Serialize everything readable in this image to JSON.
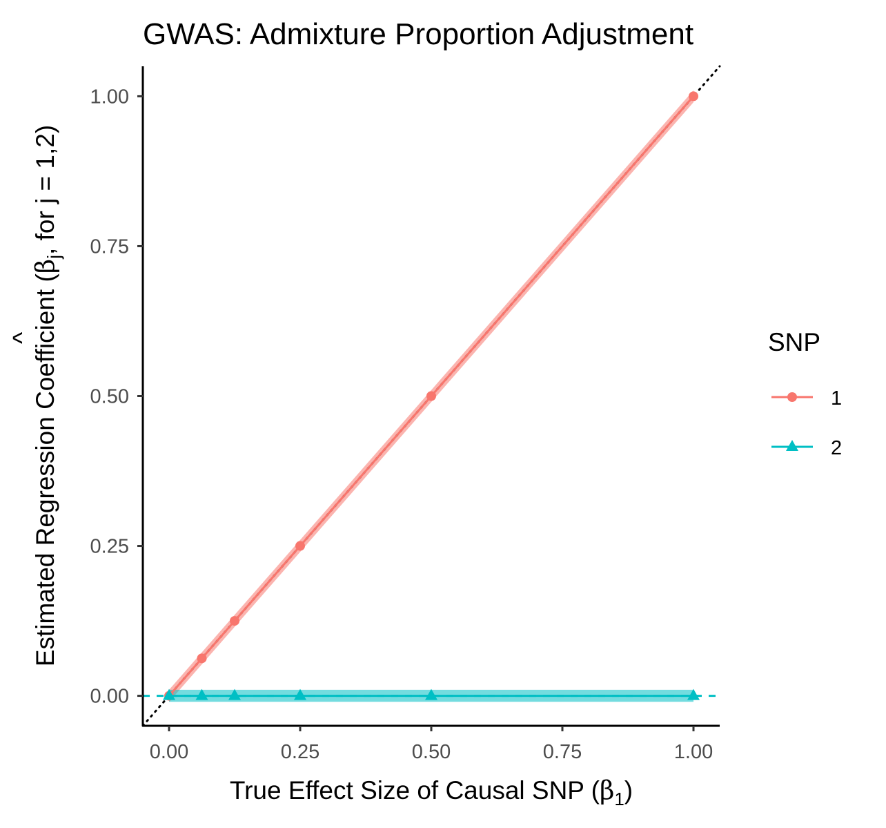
{
  "chart_data": {
    "type": "line",
    "title": "GWAS: Admixture Proportion Adjustment",
    "xlabel": {
      "text": "True Effect Size of Causal SNP (",
      "symbol": "β",
      "subscript": "1",
      "close": ")"
    },
    "ylabel": {
      "text": "Estimated Regression Coefficient (",
      "hat": "^",
      "symbol": "β",
      "subscript": "j",
      "rest": ", for j = 1,2)"
    },
    "xlim": [
      -0.05,
      1.05
    ],
    "ylim": [
      -0.05,
      1.05
    ],
    "x_ticks": [
      0,
      0.25,
      0.5,
      0.75,
      1
    ],
    "x_tick_labels": [
      "0.00",
      "0.25",
      "0.50",
      "0.75",
      "1.00"
    ],
    "y_ticks": [
      0,
      0.25,
      0.5,
      0.75,
      1
    ],
    "y_tick_labels": [
      "0.00",
      "0.25",
      "0.50",
      "0.75",
      "1.00"
    ],
    "grid": false,
    "legend": {
      "title": "SNP",
      "position": "right"
    },
    "reference_lines": [
      {
        "type": "identity",
        "slope": 1,
        "intercept": 0,
        "style": "dotted",
        "color": "#000000"
      },
      {
        "type": "horizontal",
        "y": 0,
        "style": "dashed",
        "color": "#00BFC4"
      }
    ],
    "series": [
      {
        "name": "1",
        "color": "#F8766D",
        "marker": "circle",
        "x": [
          0,
          0.0625,
          0.125,
          0.25,
          0.5,
          1
        ],
        "y": [
          0,
          0.0625,
          0.125,
          0.25,
          0.5,
          1
        ],
        "ci_halfwidth": 0.01
      },
      {
        "name": "2",
        "color": "#00BFC4",
        "marker": "triangle",
        "x": [
          0,
          0.0625,
          0.125,
          0.25,
          0.5,
          1
        ],
        "y": [
          0,
          0,
          0,
          0,
          0,
          0
        ],
        "ci_halfwidth": 0.01
      }
    ]
  }
}
